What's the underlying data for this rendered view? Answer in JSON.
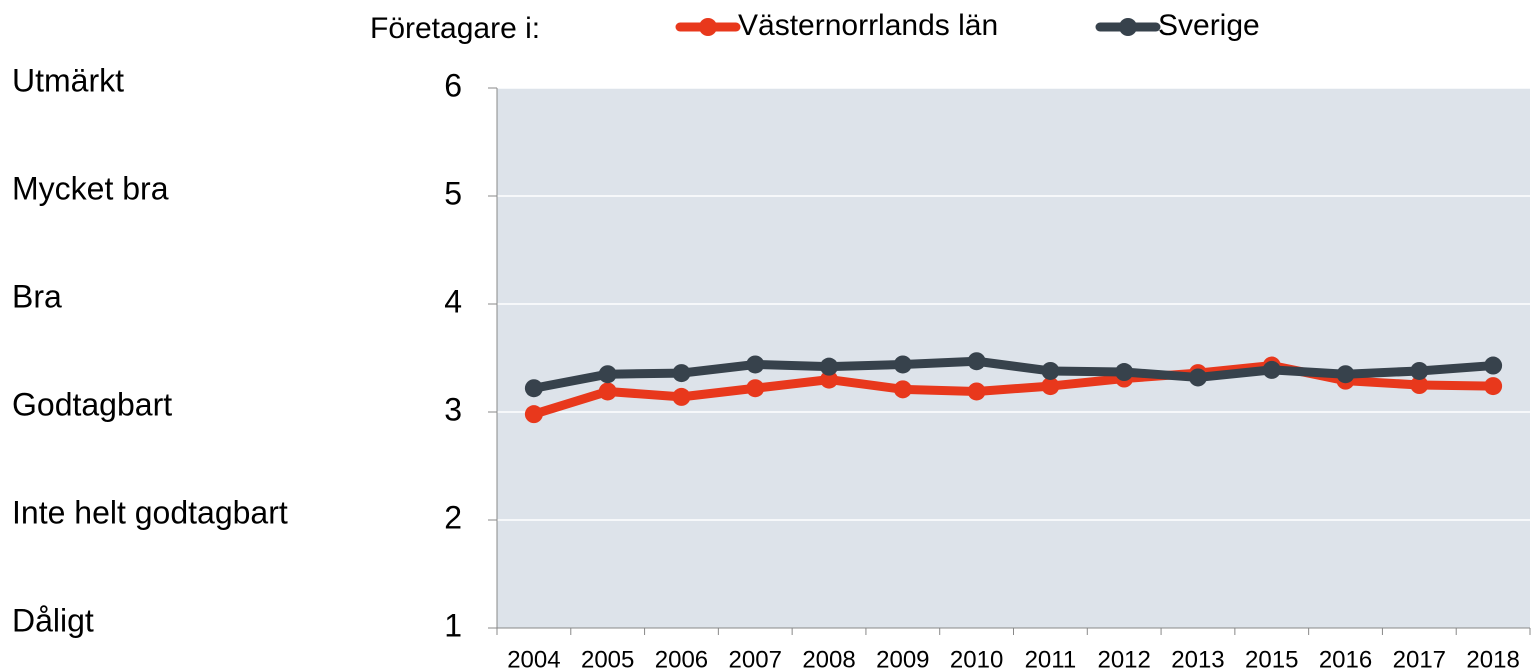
{
  "chart_data": {
    "type": "line",
    "legend_title": "Företagare i:",
    "categories": [
      "2004",
      "2005",
      "2006",
      "2007",
      "2008",
      "2009",
      "2010",
      "2011",
      "2012",
      "2013",
      "2015",
      "2016",
      "2017",
      "2018"
    ],
    "series": [
      {
        "name": "Västernorrlands län",
        "color": "#e8381c",
        "values": [
          2.98,
          3.19,
          3.14,
          3.22,
          3.3,
          3.21,
          3.19,
          3.24,
          3.31,
          3.36,
          3.43,
          3.29,
          3.25,
          3.24
        ]
      },
      {
        "name": "Sverige",
        "color": "#37424c",
        "values": [
          3.22,
          3.35,
          3.36,
          3.44,
          3.42,
          3.44,
          3.47,
          3.38,
          3.37,
          3.32,
          3.39,
          3.35,
          3.38,
          3.43
        ]
      }
    ],
    "ylim": [
      1,
      6
    ],
    "yticks": [
      1,
      2,
      3,
      4,
      5,
      6
    ],
    "rating_labels": [
      "Dåligt",
      "Inte helt godtagbart",
      "Godtagbart",
      "Bra",
      "Mycket bra",
      "Utmärkt"
    ],
    "grid": true,
    "legend": "top"
  }
}
